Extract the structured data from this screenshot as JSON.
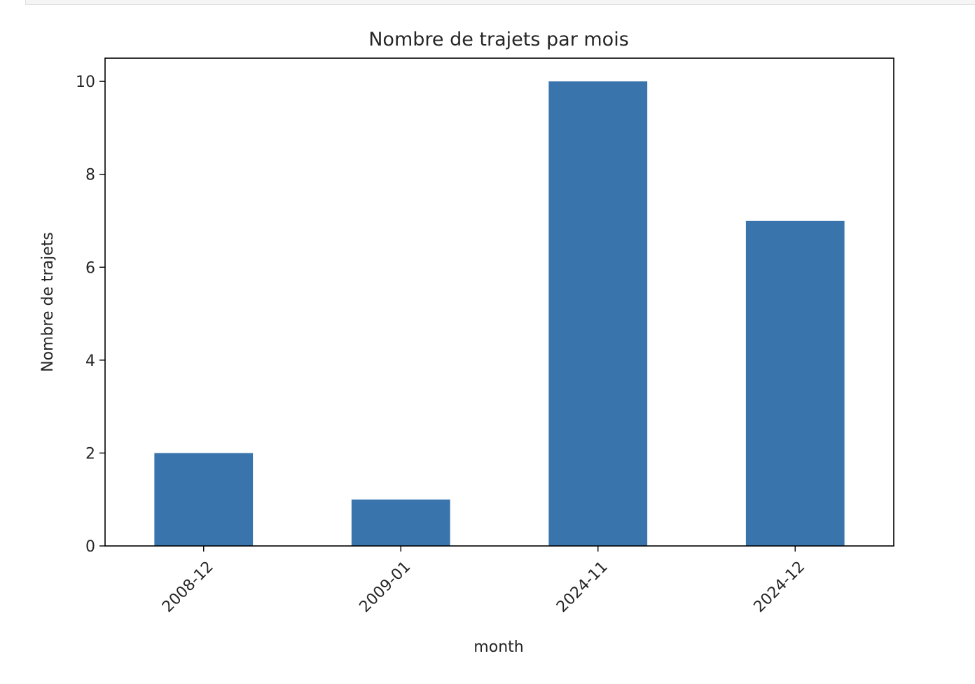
{
  "chart_data": {
    "type": "bar",
    "title": "Nombre de trajets par mois",
    "xlabel": "month",
    "ylabel": "Nombre de trajets",
    "categories": [
      "2008-12",
      "2009-01",
      "2024-11",
      "2024-12"
    ],
    "values": [
      2,
      1,
      10,
      7
    ],
    "yticks": [
      "0",
      "2",
      "4",
      "6",
      "8",
      "10"
    ],
    "ylim": [
      0,
      10.5
    ],
    "grid": false,
    "legend": "none",
    "bar_color": "#3a74ad",
    "xtick_rotation_deg": 45
  }
}
